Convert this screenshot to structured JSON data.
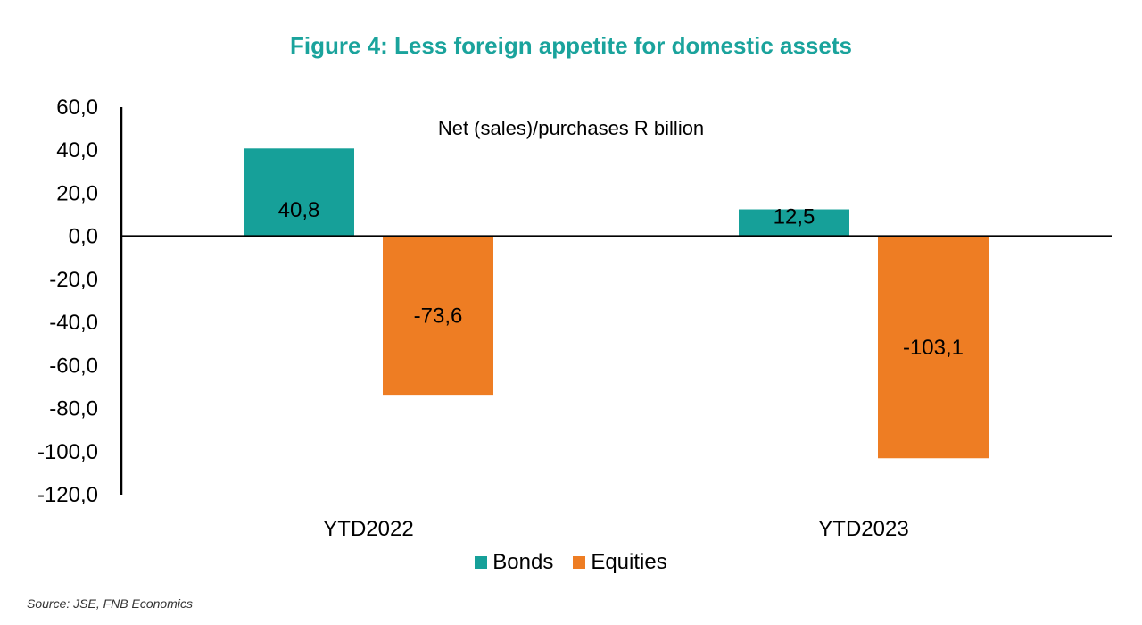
{
  "title": "Figure 4: Less foreign appetite for domestic assets",
  "source": "Source: JSE, FNB Economics",
  "chart_data": {
    "type": "bar",
    "title": "Figure 4: Less foreign appetite for domestic assets",
    "annotation": "Net (sales)/purchases R billion",
    "categories": [
      "YTD2022",
      "YTD2023"
    ],
    "series": [
      {
        "name": "Bonds",
        "color": "#16a099",
        "values": [
          40.8,
          12.5
        ],
        "labels": [
          "40,8",
          "12,5"
        ]
      },
      {
        "name": "Equities",
        "color": "#ee7d23",
        "values": [
          -73.6,
          -103.1
        ],
        "labels": [
          "-73,6",
          "-103,1"
        ]
      }
    ],
    "ylim": [
      -120,
      60
    ],
    "yticks": [
      60,
      40,
      20,
      0,
      -20,
      -40,
      -60,
      -80,
      -100,
      -120
    ],
    "ytick_labels": [
      "60,0",
      "40,0",
      "20,0",
      "0,0",
      "-20,0",
      "-40,0",
      "-60,0",
      "-80,0",
      "-100,0",
      "-120,0"
    ],
    "grid": false,
    "legend_position": "bottom"
  }
}
